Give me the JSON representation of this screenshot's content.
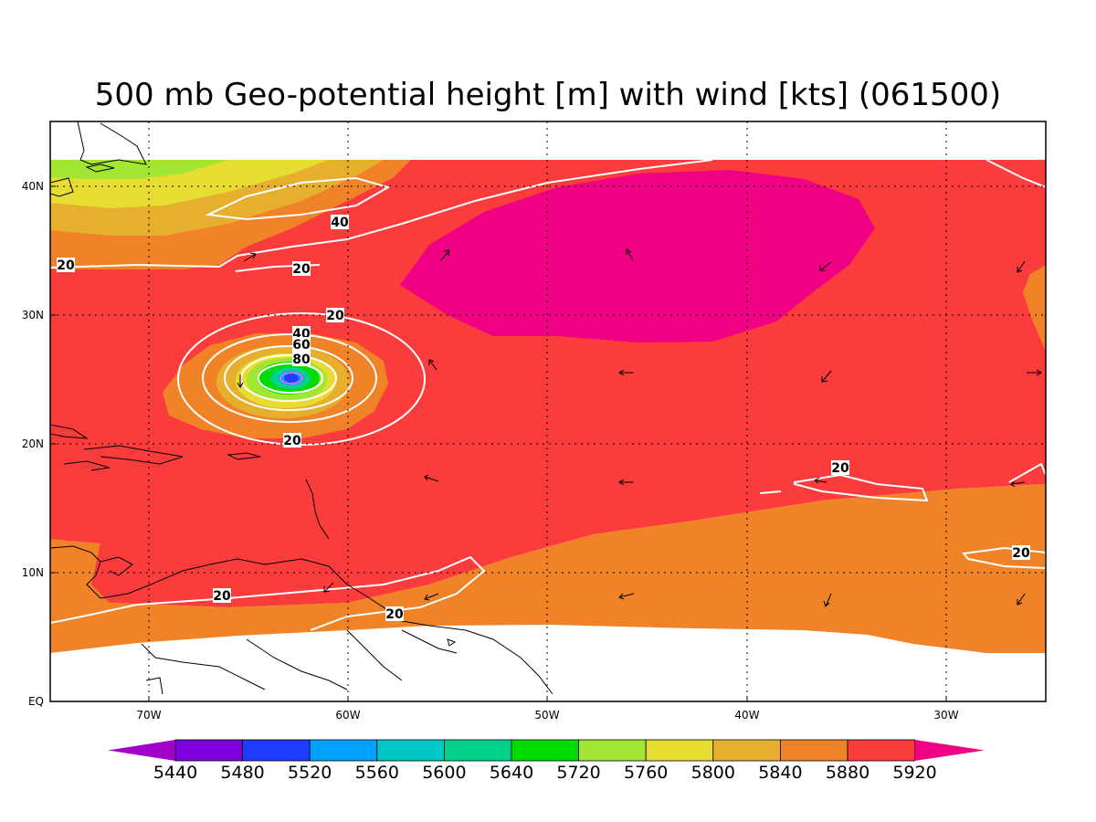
{
  "title": "500 mb Geo-potential height [m] with wind [kts] (061500)",
  "axes": {
    "x_ticks": [
      "70W",
      "60W",
      "50W",
      "40W",
      "30W"
    ],
    "y_ticks": [
      "EQ",
      "10N",
      "20N",
      "30N",
      "40N"
    ]
  },
  "colorbar": {
    "labels": [
      "5440",
      "5480",
      "5520",
      "5560",
      "5600",
      "5640",
      "5720",
      "5760",
      "5800",
      "5840",
      "5880",
      "5920"
    ],
    "colors": [
      "#a000c8",
      "#7f00dc",
      "#1e3cff",
      "#00a0ff",
      "#00c8c8",
      "#00d28c",
      "#00dc00",
      "#a0e632",
      "#e6dc32",
      "#e6af2d",
      "#f08228",
      "#fa3c3c",
      "#f00082"
    ]
  },
  "contour_labels": [
    "40",
    "20",
    "20",
    "20",
    "40",
    "60",
    "80",
    "20",
    "20",
    "20",
    "20",
    "20"
  ],
  "colors": {
    "background": "#ffffff",
    "contour": "#ffffff",
    "coast": "#000000"
  }
}
